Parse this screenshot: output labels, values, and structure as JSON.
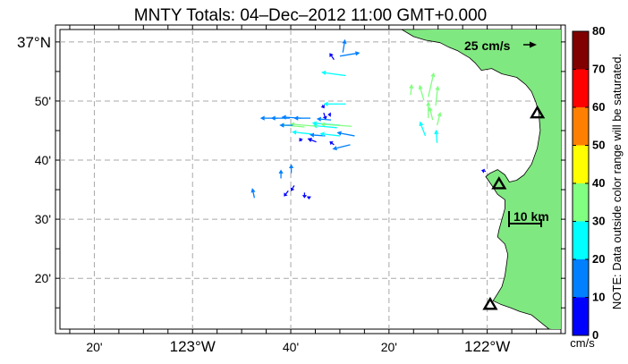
{
  "chart_data": {
    "type": "vector-map",
    "title": "MNTY Totals: 04–Dec–2012 11:00 GMT+0.000",
    "x_ticks": [
      {
        "lon": -123.3333,
        "label": "20'"
      },
      {
        "lon": -123.0,
        "label": "123°W",
        "major": true
      },
      {
        "lon": -122.6667,
        "label": "40'"
      },
      {
        "lon": -122.3333,
        "label": "20'"
      },
      {
        "lon": -122.0,
        "label": "122°W",
        "major": true
      }
    ],
    "y_ticks": [
      {
        "lat": 37.0,
        "label": "37°N",
        "major": true
      },
      {
        "lat": 36.8333,
        "label": "50'"
      },
      {
        "lat": 36.6667,
        "label": "40'"
      },
      {
        "lat": 36.5,
        "label": "30'"
      },
      {
        "lat": 36.3333,
        "label": "20'"
      }
    ],
    "xlim": [
      -123.45,
      -121.75
    ],
    "ylim": [
      36.19,
      37.035
    ],
    "grid": true,
    "land_color": "#80e880",
    "scale_arrow": {
      "label": "25 cm/s",
      "speed": 25
    },
    "scale_bar": {
      "label": "10 km",
      "km": 10
    },
    "colorbar": {
      "unit": "cm/s",
      "note": "NOTE: Data outside color range will be saturated.",
      "ticks": [
        "0",
        "10",
        "20",
        "30",
        "40",
        "50",
        "60",
        "70",
        "80"
      ],
      "bins": [
        {
          "min": 0,
          "max": 10,
          "color": "#0000ff"
        },
        {
          "min": 10,
          "max": 20,
          "color": "#0080ff"
        },
        {
          "min": 20,
          "max": 30,
          "color": "#00ffff"
        },
        {
          "min": 30,
          "max": 40,
          "color": "#80ff80"
        },
        {
          "min": 40,
          "max": 50,
          "color": "#ffff00"
        },
        {
          "min": 50,
          "max": 60,
          "color": "#ff8000"
        },
        {
          "min": 60,
          "max": 70,
          "color": "#ff0000"
        },
        {
          "min": 70,
          "max": 80,
          "color": "#800000"
        }
      ]
    },
    "sites": [
      {
        "lon": -121.83,
        "lat": 36.8
      },
      {
        "lon": -121.96,
        "lat": 36.6
      },
      {
        "lon": -121.99,
        "lat": 36.26
      }
    ],
    "coastline": [
      [
        -122.29,
        37.035
      ],
      [
        -122.25,
        37.015
      ],
      [
        -122.21,
        37.005
      ],
      [
        -122.16,
        36.998
      ],
      [
        -122.13,
        36.985
      ],
      [
        -122.1,
        36.975
      ],
      [
        -122.08,
        36.965
      ],
      [
        -122.06,
        36.955
      ],
      [
        -122.04,
        36.94
      ],
      [
        -122.02,
        36.92
      ],
      [
        -121.985,
        36.925
      ],
      [
        -121.95,
        36.91
      ],
      [
        -121.9,
        36.9
      ],
      [
        -121.87,
        36.88
      ],
      [
        -121.85,
        36.86
      ],
      [
        -121.835,
        36.83
      ],
      [
        -121.825,
        36.8
      ],
      [
        -121.82,
        36.75
      ],
      [
        -121.83,
        36.7
      ],
      [
        -121.85,
        36.655
      ],
      [
        -121.875,
        36.625
      ],
      [
        -121.9,
        36.61
      ],
      [
        -121.925,
        36.605
      ],
      [
        -121.94,
        36.625
      ],
      [
        -121.965,
        36.64
      ],
      [
        -121.99,
        36.63
      ],
      [
        -122.005,
        36.62
      ],
      [
        -121.98,
        36.59
      ],
      [
        -121.965,
        36.57
      ],
      [
        -121.94,
        36.555
      ],
      [
        -121.94,
        36.53
      ],
      [
        -121.95,
        36.5
      ],
      [
        -121.96,
        36.47
      ],
      [
        -121.965,
        36.45
      ],
      [
        -121.94,
        36.43
      ],
      [
        -121.93,
        36.4
      ],
      [
        -121.935,
        36.37
      ],
      [
        -121.94,
        36.34
      ],
      [
        -121.95,
        36.31
      ],
      [
        -121.965,
        36.29
      ],
      [
        -121.98,
        36.27
      ],
      [
        -121.955,
        36.26
      ],
      [
        -121.92,
        36.25
      ],
      [
        -121.89,
        36.24
      ],
      [
        -121.85,
        36.23
      ],
      [
        -121.82,
        36.21
      ],
      [
        -121.79,
        36.19
      ]
    ],
    "vectors": [
      {
        "lon": -122.49,
        "lat": 36.97,
        "u": 2,
        "v": 12,
        "speed": 12
      },
      {
        "lon": -122.5,
        "lat": 36.96,
        "u": 18,
        "v": 3,
        "speed": 19
      },
      {
        "lon": -122.52,
        "lat": 36.95,
        "u": -4,
        "v": 6,
        "speed": 8
      },
      {
        "lon": -122.48,
        "lat": 36.905,
        "u": -22,
        "v": 3,
        "speed": 26
      },
      {
        "lon": -122.48,
        "lat": 36.825,
        "u": -20,
        "v": 0,
        "speed": 22
      },
      {
        "lon": -122.56,
        "lat": 36.822,
        "u": 2,
        "v": -3,
        "speed": 5
      },
      {
        "lon": -122.555,
        "lat": 36.8,
        "u": 2,
        "v": -6,
        "speed": 7
      },
      {
        "lon": -122.53,
        "lat": 36.795,
        "u": -3,
        "v": 0,
        "speed": 4
      },
      {
        "lon": -122.6,
        "lat": 36.785,
        "u": -15,
        "v": 0,
        "speed": 15
      },
      {
        "lon": -122.63,
        "lat": 36.785,
        "u": -18,
        "v": 1,
        "speed": 18
      },
      {
        "lon": -122.67,
        "lat": 36.785,
        "u": -17,
        "v": 0,
        "speed": 17
      },
      {
        "lon": -122.71,
        "lat": 36.785,
        "u": -16,
        "v": 0,
        "speed": 16
      },
      {
        "lon": -122.53,
        "lat": 36.78,
        "u": -13,
        "v": 1,
        "speed": 13
      },
      {
        "lon": -122.5,
        "lat": 36.765,
        "u": -25,
        "v": 2,
        "speed": 26
      },
      {
        "lon": -122.46,
        "lat": 36.762,
        "u": -28,
        "v": 2,
        "speed": 32
      },
      {
        "lon": -122.51,
        "lat": 36.758,
        "u": -22,
        "v": 2,
        "speed": 24
      },
      {
        "lon": -122.575,
        "lat": 36.762,
        "u": -25,
        "v": 2,
        "speed": 32
      },
      {
        "lon": -122.62,
        "lat": 36.76,
        "u": -22,
        "v": 2,
        "speed": 32
      },
      {
        "lon": -122.66,
        "lat": 36.765,
        "u": -12,
        "v": 0,
        "speed": 16
      },
      {
        "lon": -122.595,
        "lat": 36.74,
        "u": -18,
        "v": 2,
        "speed": 25
      },
      {
        "lon": -122.55,
        "lat": 36.735,
        "u": -14,
        "v": 1,
        "speed": 17
      },
      {
        "lon": -122.5,
        "lat": 36.735,
        "u": -18,
        "v": 2,
        "speed": 25
      },
      {
        "lon": -122.45,
        "lat": 36.735,
        "u": -16,
        "v": 3,
        "speed": 16
      },
      {
        "lon": -122.465,
        "lat": 36.71,
        "u": -16,
        "v": -4,
        "speed": 16
      },
      {
        "lon": -122.58,
        "lat": 36.718,
        "u": -8,
        "v": 3,
        "speed": 8
      },
      {
        "lon": -122.63,
        "lat": 36.72,
        "u": -2,
        "v": 3,
        "speed": 5
      },
      {
        "lon": -122.52,
        "lat": 36.71,
        "u": -4,
        "v": 3,
        "speed": 5
      },
      {
        "lon": -122.665,
        "lat": 36.63,
        "u": 0,
        "v": 8,
        "speed": 10
      },
      {
        "lon": -122.7,
        "lat": 36.615,
        "u": 0,
        "v": 8,
        "speed": 11
      },
      {
        "lon": -122.655,
        "lat": 36.595,
        "u": -3,
        "v": -5,
        "speed": 9
      },
      {
        "lon": -122.605,
        "lat": 36.565,
        "u": 0,
        "v": -3,
        "speed": 3
      },
      {
        "lon": -122.675,
        "lat": 36.58,
        "u": -4,
        "v": -5,
        "speed": 8
      },
      {
        "lon": -122.62,
        "lat": 36.575,
        "u": 0,
        "v": -5,
        "speed": 5
      },
      {
        "lon": -122.79,
        "lat": 36.56,
        "u": -2,
        "v": 9,
        "speed": 17
      },
      {
        "lon": -122.26,
        "lat": 36.85,
        "u": 1,
        "v": 10,
        "speed": 35
      },
      {
        "lon": -122.215,
        "lat": 36.835,
        "u": -4,
        "v": 14,
        "speed": 35
      },
      {
        "lon": -122.2,
        "lat": 36.845,
        "u": 5,
        "v": 22,
        "speed": 38
      },
      {
        "lon": -122.175,
        "lat": 36.82,
        "u": 2,
        "v": 18,
        "speed": 38
      },
      {
        "lon": -122.2,
        "lat": 36.785,
        "u": 0,
        "v": 15,
        "speed": 36
      },
      {
        "lon": -122.185,
        "lat": 36.78,
        "u": -3,
        "v": 12,
        "speed": 32
      },
      {
        "lon": -122.17,
        "lat": 36.765,
        "u": 3,
        "v": 12,
        "speed": 33
      },
      {
        "lon": -122.17,
        "lat": 36.715,
        "u": -1,
        "v": 12,
        "speed": 25
      },
      {
        "lon": -122.21,
        "lat": 36.735,
        "u": -5,
        "v": 13,
        "speed": 27
      },
      {
        "lon": -122.005,
        "lat": 36.635,
        "u": -4,
        "v": 1,
        "speed": 5
      }
    ]
  }
}
